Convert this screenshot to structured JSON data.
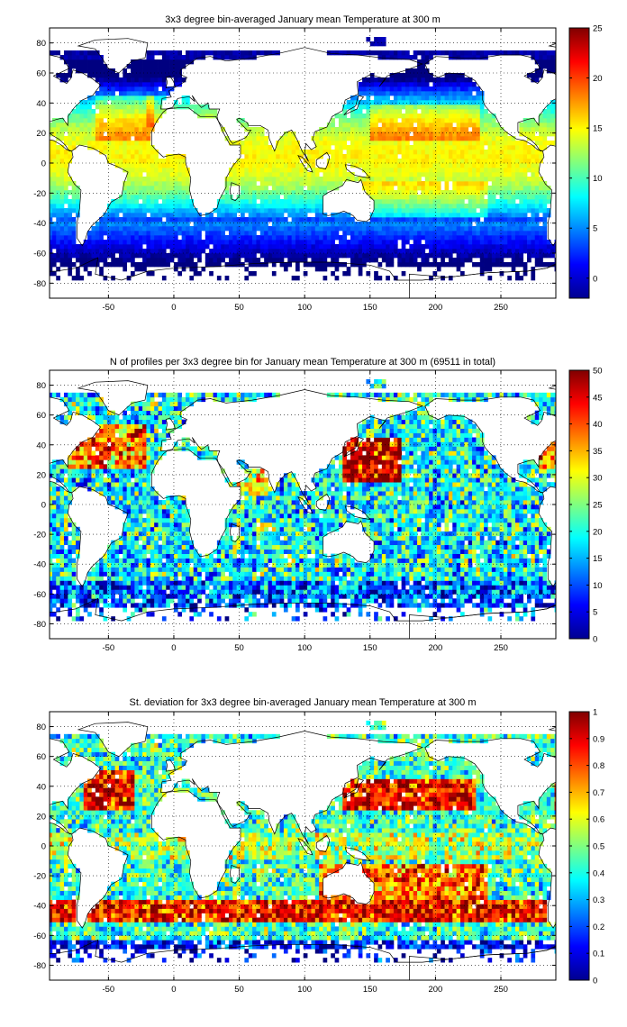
{
  "chart_data": [
    {
      "type": "heatmap",
      "title": "3x3 degree bin-averaged January mean Temperature at 300 m",
      "xlim": [
        -95,
        292
      ],
      "ylim": [
        -90,
        90
      ],
      "xticks": [
        -50,
        0,
        50,
        100,
        150,
        200,
        250
      ],
      "yticks": [
        80,
        60,
        40,
        20,
        0,
        -20,
        -40,
        -60,
        -80
      ],
      "grid": true,
      "colorbar": {
        "min": -2,
        "max": 25,
        "ticks": [
          0,
          5,
          10,
          15,
          20,
          25
        ],
        "colormap": "jet"
      },
      "field": "temperature"
    },
    {
      "type": "heatmap",
      "title": "N of profiles per 3x3 degree bin for January mean Temperature at 300 m (69511 in total)",
      "xlim": [
        -95,
        292
      ],
      "ylim": [
        -90,
        90
      ],
      "xticks": [
        -50,
        0,
        50,
        100,
        150,
        200,
        250
      ],
      "yticks": [
        80,
        60,
        40,
        20,
        0,
        -20,
        -40,
        -60,
        -80
      ],
      "grid": true,
      "colorbar": {
        "min": 0,
        "max": 50,
        "ticks": [
          0,
          5,
          10,
          15,
          20,
          25,
          30,
          35,
          40,
          45,
          50
        ],
        "colormap": "jet"
      },
      "field": "count"
    },
    {
      "type": "heatmap",
      "title": "St. deviation for 3x3 degree bin-averaged January mean Temperature at 300 m",
      "xlim": [
        -95,
        292
      ],
      "ylim": [
        -90,
        90
      ],
      "xticks": [
        -50,
        0,
        50,
        100,
        150,
        200,
        250
      ],
      "yticks": [
        80,
        60,
        40,
        20,
        0,
        -20,
        -40,
        -60,
        -80
      ],
      "grid": true,
      "colorbar": {
        "min": 0,
        "max": 1,
        "ticks": [
          0,
          0.1,
          0.2,
          0.3,
          0.4,
          0.5,
          0.6,
          0.7,
          0.8,
          0.9,
          1
        ],
        "colormap": "jet"
      },
      "field": "stdev"
    }
  ]
}
